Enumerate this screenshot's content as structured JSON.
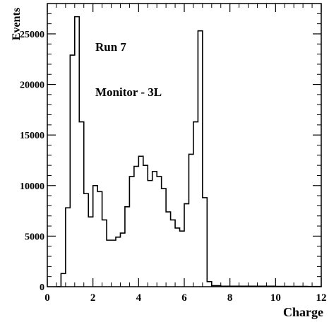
{
  "chart_data": {
    "type": "histogram",
    "xlabel": "Charge",
    "ylabel": "Events",
    "xlim": [
      0,
      12
    ],
    "ylim": [
      0,
      28000
    ],
    "x_ticks": [
      "0",
      "2",
      "4",
      "6",
      "8",
      "10",
      "12"
    ],
    "y_ticks": [
      "0",
      "5000",
      "10000",
      "15000",
      "20000",
      "25000"
    ],
    "annotations": [
      "Run 7",
      "Monitor - 3L"
    ],
    "bin_width": 0.2,
    "bin_start": 0.4,
    "values": [
      0,
      1300,
      7800,
      22900,
      26700,
      16300,
      9200,
      6900,
      10000,
      9400,
      6600,
      4600,
      4600,
      4900,
      5300,
      7900,
      10900,
      11900,
      12900,
      12000,
      10500,
      11400,
      10900,
      9700,
      7400,
      6600,
      5800,
      5500,
      8200,
      13100,
      16300,
      25300,
      8800,
      500,
      100,
      100,
      50,
      50,
      50,
      50,
      50,
      50,
      50,
      50,
      50,
      50,
      50,
      50,
      30,
      30,
      30,
      30,
      30,
      30,
      30,
      20,
      20,
      20
    ],
    "grid": false,
    "legend": "none"
  }
}
